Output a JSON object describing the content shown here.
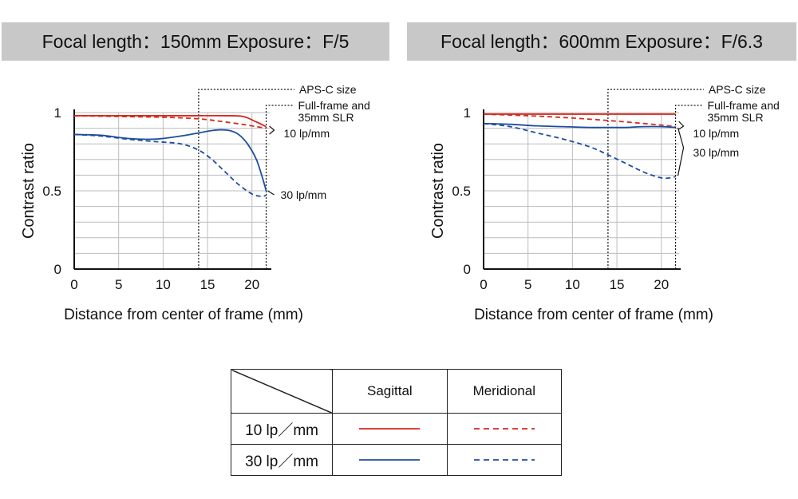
{
  "headers": {
    "left": "Focal length：150mm  Exposure：F/5",
    "right": "Focal length：600mm  Exposure：F/6.3"
  },
  "colors": {
    "red": "#d42a1f",
    "blue": "#1d4e9f",
    "grid": "#bdbdbd"
  },
  "chart_data": [
    {
      "type": "line",
      "title": "Focal length：150mm  Exposure：F/5",
      "xlabel": "Distance from center of frame (mm)",
      "ylabel": "Contrast ratio",
      "xlim": [
        0,
        22
      ],
      "ylim": [
        0,
        1
      ],
      "xticks": [
        "0",
        "5",
        "10",
        "15",
        "20"
      ],
      "yticks": [
        "0",
        "0.5",
        "1"
      ],
      "grid": true,
      "vlines": [
        {
          "x": 14,
          "label": "APS-C size"
        },
        {
          "x": 21.6,
          "label": "Full-frame and 35mm SLR"
        }
      ],
      "annotations": [
        "10 lp/mm",
        "30 lp/mm"
      ],
      "series": [
        {
          "freq": "10 lp/mm",
          "type": "Sagittal",
          "color": "red",
          "dash": false,
          "x": [
            0,
            5,
            10,
            14,
            17,
            19,
            20.5,
            21.6
          ],
          "y": [
            0.98,
            0.98,
            0.98,
            0.98,
            0.98,
            0.975,
            0.94,
            0.91
          ]
        },
        {
          "freq": "10 lp/mm",
          "type": "Meridional",
          "color": "red",
          "dash": true,
          "x": [
            0,
            5,
            10,
            14,
            17,
            20,
            21.6
          ],
          "y": [
            0.98,
            0.975,
            0.97,
            0.96,
            0.94,
            0.915,
            0.9
          ]
        },
        {
          "freq": "30 lp/mm",
          "type": "Sagittal",
          "color": "blue",
          "dash": false,
          "x": [
            0,
            3,
            6,
            9,
            12,
            14,
            15.5,
            16.5,
            17.5,
            18.5,
            19.5,
            20.5,
            21.2,
            21.6
          ],
          "y": [
            0.86,
            0.855,
            0.835,
            0.83,
            0.85,
            0.87,
            0.885,
            0.89,
            0.885,
            0.86,
            0.8,
            0.7,
            0.58,
            0.5
          ]
        },
        {
          "freq": "30 lp/mm",
          "type": "Meridional",
          "color": "blue",
          "dash": true,
          "x": [
            0,
            3,
            6,
            9,
            12,
            14,
            15.5,
            17,
            18.5,
            20,
            21,
            21.6
          ],
          "y": [
            0.86,
            0.85,
            0.83,
            0.815,
            0.8,
            0.76,
            0.7,
            0.62,
            0.54,
            0.48,
            0.465,
            0.47
          ]
        }
      ]
    },
    {
      "type": "line",
      "title": "Focal length：600mm  Exposure：F/6.3",
      "xlabel": "Distance from center of frame (mm)",
      "ylabel": "Contrast ratio",
      "xlim": [
        0,
        22
      ],
      "ylim": [
        0,
        1
      ],
      "xticks": [
        "0",
        "5",
        "10",
        "15",
        "20"
      ],
      "yticks": [
        "0",
        "0.5",
        "1"
      ],
      "grid": true,
      "vlines": [
        {
          "x": 14,
          "label": "APS-C size"
        },
        {
          "x": 21.6,
          "label": "Full-frame and 35mm SLR"
        }
      ],
      "annotations": [
        "10 lp/mm",
        "30 lp/mm"
      ],
      "series": [
        {
          "freq": "10 lp/mm",
          "type": "Sagittal",
          "color": "red",
          "dash": false,
          "x": [
            0,
            5,
            10,
            15,
            20,
            21.6
          ],
          "y": [
            0.99,
            0.99,
            0.99,
            0.99,
            0.99,
            0.99
          ]
        },
        {
          "freq": "10 lp/mm",
          "type": "Meridional",
          "color": "red",
          "dash": true,
          "x": [
            0,
            5,
            10,
            15,
            20,
            21.6
          ],
          "y": [
            0.99,
            0.98,
            0.965,
            0.945,
            0.92,
            0.91
          ]
        },
        {
          "freq": "30 lp/mm",
          "type": "Sagittal",
          "color": "blue",
          "dash": false,
          "x": [
            0,
            3,
            6,
            9,
            12,
            14,
            16,
            18,
            20,
            21.6
          ],
          "y": [
            0.93,
            0.925,
            0.915,
            0.91,
            0.905,
            0.905,
            0.905,
            0.91,
            0.91,
            0.905
          ]
        },
        {
          "freq": "30 lp/mm",
          "type": "Meridional",
          "color": "blue",
          "dash": true,
          "x": [
            0,
            3,
            6,
            9,
            12,
            14,
            16,
            18,
            19.5,
            20.5,
            21.6
          ],
          "y": [
            0.93,
            0.91,
            0.87,
            0.83,
            0.78,
            0.73,
            0.675,
            0.62,
            0.59,
            0.58,
            0.59
          ]
        }
      ]
    }
  ],
  "legend": {
    "col_sagittal": "Sagittal",
    "col_meridional": "Meridional",
    "row_10": "10 lp／mm",
    "row_30": "30 lp／mm"
  }
}
